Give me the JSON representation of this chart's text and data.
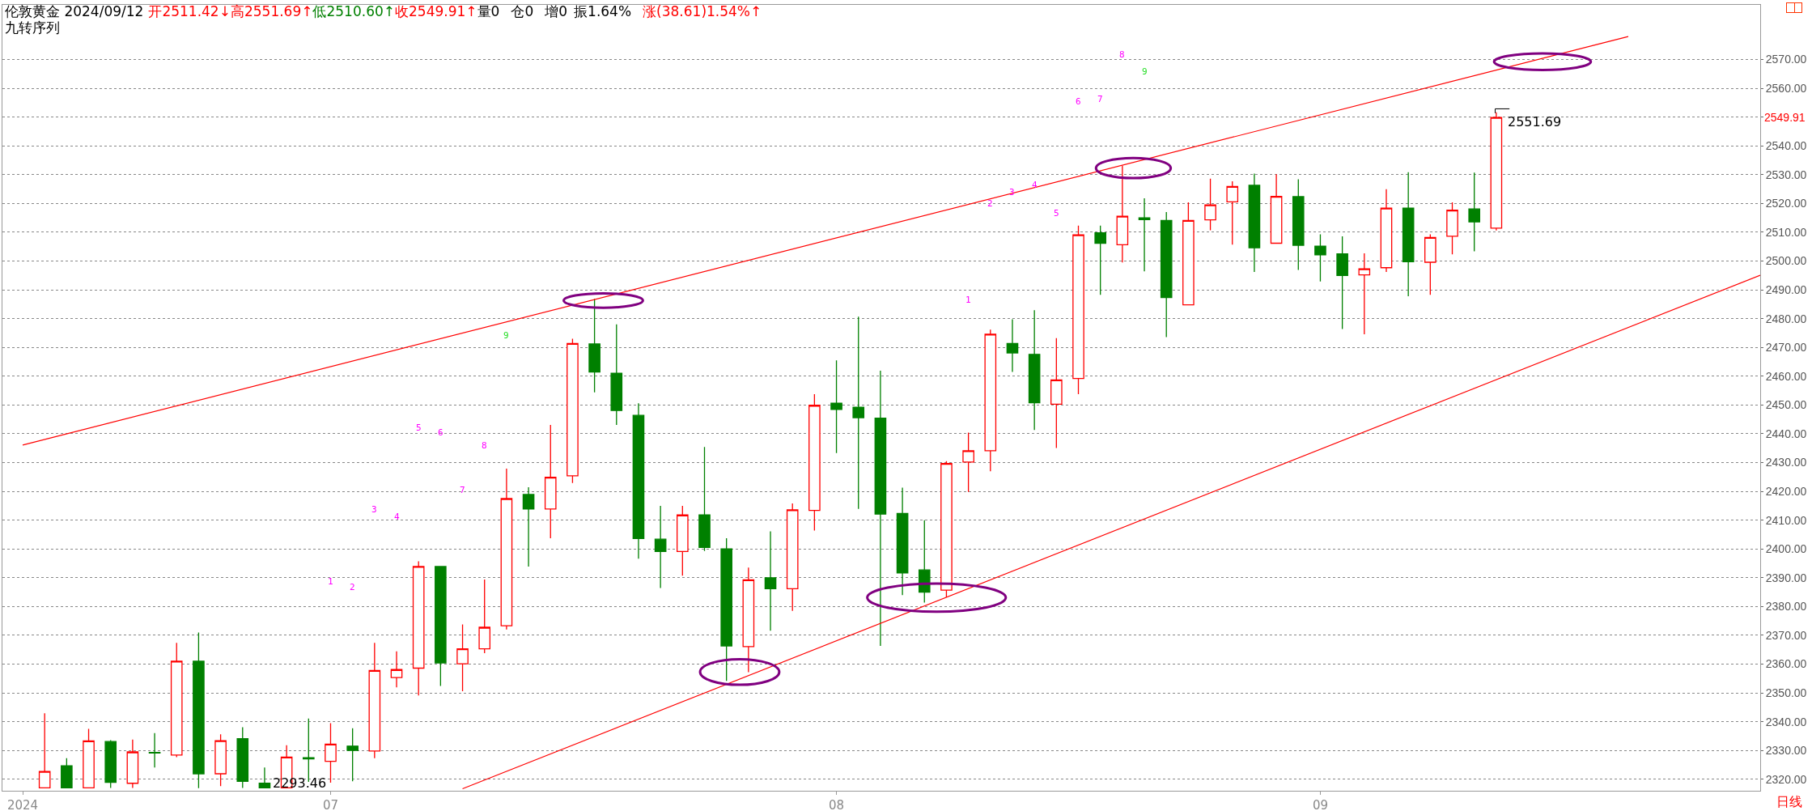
{
  "chart_data": {
    "type": "candlestick",
    "title": "伦敦黄金 2024/09/12",
    "subtitle": "九转序列",
    "categories": [
      "2024",
      null,
      null,
      null,
      null,
      null,
      null,
      null,
      null,
      null,
      null,
      null,
      null,
      null,
      "07",
      null,
      null,
      null,
      null,
      null,
      null,
      null,
      null,
      null,
      null,
      null,
      null,
      null,
      null,
      null,
      null,
      null,
      null,
      null,
      null,
      null,
      null,
      "08",
      null,
      null,
      null,
      null,
      null,
      null,
      null,
      null,
      null,
      null,
      null,
      null,
      null,
      null,
      null,
      null,
      null,
      null,
      null,
      null,
      null,
      "09",
      null,
      null,
      null,
      null,
      null,
      null,
      null,
      null,
      null,
      null,
      null,
      null,
      null,
      null,
      null,
      null,
      null,
      null,
      null,
      null
    ],
    "ohlc": [
      null,
      [
        2317,
        2342.9,
        2317,
        2322.7
      ],
      [
        2324.7,
        2327.3,
        2317,
        2317
      ],
      [
        2317,
        2337.5,
        2317,
        2333.3
      ],
      [
        2333.1,
        2333.6,
        2317,
        2318.9
      ],
      [
        2318.6,
        2333.8,
        2317,
        2329.5
      ],
      [
        2329.3,
        2336,
        2324.1,
        2329.1
      ],
      [
        2328.4,
        2367.4,
        2327.7,
        2361
      ],
      [
        2361,
        2371,
        2316.9,
        2321.9
      ],
      [
        2321.9,
        2335.6,
        2317.6,
        2333.4
      ],
      [
        2334.1,
        2338.1,
        2317,
        2319.3
      ],
      [
        2318.6,
        2324.1,
        2317,
        2317
      ],
      [
        2317,
        2331.8,
        2317,
        2327.7
      ],
      [
        2327.5,
        2341.1,
        2319.1,
        2327.1
      ],
      [
        2326.2,
        2339.5,
        2318.8,
        2332.2
      ],
      [
        2331.5,
        2337.7,
        2319.3,
        2330
      ],
      [
        2329.8,
        2367.4,
        2327.3,
        2357.8
      ],
      [
        2355.3,
        2364.4,
        2351.9,
        2358.1
      ],
      [
        2358.6,
        2395.7,
        2349.1,
        2393.9
      ],
      [
        2393.9,
        2393.9,
        2352.4,
        2360.4
      ],
      [
        2360.1,
        2373.8,
        2350.6,
        2365.3
      ],
      [
        2365.3,
        2389.4,
        2363.8,
        2372.8
      ],
      [
        2373.3,
        2427.9,
        2372,
        2417.5
      ],
      [
        2418.9,
        2421.4,
        2393.9,
        2413.9
      ],
      [
        2413.9,
        2443.1,
        2403.7,
        2424.9
      ],
      [
        2425.4,
        2473,
        2422.9,
        2471.4
      ],
      [
        2471.2,
        2486.9,
        2454.4,
        2461.5
      ],
      [
        2461,
        2478,
        2443.1,
        2448.1
      ],
      [
        2446.4,
        2450.6,
        2396.6,
        2403.6
      ],
      [
        2403.4,
        2415,
        2386.4,
        2399.1
      ],
      [
        2399.1,
        2415,
        2390.7,
        2411.8
      ],
      [
        2411.8,
        2435.4,
        2399.3,
        2400.5
      ],
      [
        2400,
        2403.7,
        2354.2,
        2366.3
      ],
      [
        2366.1,
        2393.5,
        2357.2,
        2389.3
      ],
      [
        2390,
        2406.1,
        2371.6,
        2386.2
      ],
      [
        2386.2,
        2415.8,
        2378.5,
        2413.6
      ],
      [
        2413.4,
        2453.8,
        2406.4,
        2449.9
      ],
      [
        2450.6,
        2465.5,
        2433.3,
        2448.5
      ],
      [
        2449.2,
        2480.7,
        2413.9,
        2445.6
      ],
      [
        2445.4,
        2461.9,
        2366.3,
        2412.1
      ],
      [
        2412.3,
        2421.3,
        2384,
        2391.7
      ],
      [
        2392.7,
        2410,
        2381.4,
        2385
      ],
      [
        2385.7,
        2430.5,
        2383.2,
        2429.7
      ],
      [
        2430.2,
        2440.4,
        2419.8,
        2434.1
      ],
      [
        2434.1,
        2476.2,
        2427,
        2474.6
      ],
      [
        2471.4,
        2479.8,
        2461.5,
        2468.1
      ],
      [
        2467.6,
        2482.9,
        2441.3,
        2450.8
      ],
      [
        2450.3,
        2473.2,
        2435.1,
        2458.7
      ],
      [
        2459.2,
        2512.3,
        2453.8,
        2509.1
      ],
      [
        2509.8,
        2512.3,
        2488.3,
        2506.2
      ],
      [
        2505.7,
        2533.1,
        2499.5,
        2515.6
      ],
      [
        2515,
        2521.8,
        2496.4,
        2514.4
      ],
      [
        2514.1,
        2517,
        2473.6,
        2487.3
      ],
      [
        2484.8,
        2520.4,
        2484.8,
        2514.1
      ],
      [
        2514.3,
        2528.6,
        2510.7,
        2519.5
      ],
      [
        2520.6,
        2527.7,
        2505.7,
        2525.9
      ],
      [
        2526.3,
        2530.4,
        2496.2,
        2504.6
      ],
      [
        2506.2,
        2530.2,
        2506.2,
        2522.5
      ],
      [
        2522.4,
        2528.4,
        2496.9,
        2505.5
      ],
      [
        2505.2,
        2509.3,
        2492.9,
        2502.2
      ],
      [
        2502.5,
        2508.6,
        2476.4,
        2495
      ],
      [
        2495.2,
        2502.7,
        2474.6,
        2497.3
      ],
      [
        2497.7,
        2525,
        2496.2,
        2518.4
      ],
      [
        2518.4,
        2530.9,
        2487.8,
        2499.8
      ],
      [
        2499.6,
        2509.3,
        2488.3,
        2508.2
      ],
      [
        2508.6,
        2520.4,
        2502.3,
        2517.7
      ],
      [
        2518.1,
        2530.7,
        2503.4,
        2513.6
      ],
      [
        2511.42,
        2551.69,
        2510.6,
        2549.91
      ],
      null,
      null,
      null,
      null,
      null,
      null,
      null,
      null,
      null,
      null,
      null,
      null
    ],
    "series": [
      {
        "type": "line",
        "color": "#ff0000",
        "values": [
          2436.1,
          null,
          null,
          null,
          null,
          null,
          null,
          null,
          null,
          null,
          null,
          null,
          null,
          null,
          null,
          null,
          null,
          null,
          null,
          null,
          null,
          null,
          null,
          null,
          null,
          null,
          null,
          null,
          null,
          null,
          null,
          null,
          null,
          null,
          null,
          null,
          null,
          null,
          null,
          null,
          null,
          null,
          null,
          null,
          null,
          null,
          null,
          null,
          null,
          null,
          null,
          null,
          null,
          null,
          null,
          null,
          null,
          null,
          null,
          null,
          null,
          null,
          null,
          null,
          null,
          null,
          null,
          null,
          null,
          null,
          null,
          null,
          null,
          2578.0,
          null,
          null,
          null,
          null,
          null,
          null
        ]
      },
      {
        "type": "line",
        "color": "#ff0000",
        "values": [
          null,
          null,
          null,
          null,
          null,
          null,
          null,
          null,
          null,
          null,
          null,
          null,
          null,
          null,
          null,
          null,
          null,
          null,
          null,
          null,
          2316.7,
          null,
          null,
          null,
          null,
          null,
          null,
          null,
          null,
          null,
          null,
          null,
          null,
          null,
          null,
          null,
          null,
          null,
          null,
          null,
          null,
          null,
          null,
          null,
          null,
          null,
          null,
          null,
          null,
          null,
          null,
          null,
          null,
          null,
          null,
          null,
          null,
          null,
          null,
          null,
          null,
          null,
          null,
          null,
          null,
          null,
          null,
          null,
          null,
          null,
          null,
          null,
          null,
          null,
          null,
          null,
          null,
          null,
          null,
          2495.1
        ]
      }
    ],
    "ylim": [
      2316,
      2589
    ],
    "yticks": [
      {
        "value": 2320,
        "label": "2320.00"
      },
      {
        "value": 2330,
        "label": "2330.00"
      },
      {
        "value": 2340,
        "label": "2340.00"
      },
      {
        "value": 2350,
        "label": "2350.00"
      },
      {
        "value": 2360,
        "label": "2360.00"
      },
      {
        "value": 2370,
        "label": "2370.00"
      },
      {
        "value": 2380,
        "label": "2380.00"
      },
      {
        "value": 2390,
        "label": "2390.00"
      },
      {
        "value": 2400,
        "label": "2400.00"
      },
      {
        "value": 2410,
        "label": "2410.00"
      },
      {
        "value": 2420,
        "label": "2420.00"
      },
      {
        "value": 2430,
        "label": "2430.00"
      },
      {
        "value": 2440,
        "label": "2440.00"
      },
      {
        "value": 2450,
        "label": "2450.00"
      },
      {
        "value": 2460,
        "label": "2460.00"
      },
      {
        "value": 2470,
        "label": "2470.00"
      },
      {
        "value": 2480,
        "label": "2480.00"
      },
      {
        "value": 2490,
        "label": "2490.00"
      },
      {
        "value": 2500,
        "label": "2500.00"
      },
      {
        "value": 2510,
        "label": "2510.00"
      },
      {
        "value": 2520,
        "label": "2520.00"
      },
      {
        "value": 2530,
        "label": "2530.00"
      },
      {
        "value": 2540,
        "label": "2540.00"
      },
      {
        "value": 2550,
        "label": null
      },
      {
        "value": 2560,
        "label": "2560.00"
      },
      {
        "value": 2570,
        "label": "2570.00"
      }
    ],
    "grid": "y",
    "annotations": [
      "开2511.42↓",
      "高2551.69↑",
      "低2510.60↑",
      "收2549.91↑",
      "量0",
      "仓0",
      "增0",
      "振1.64%",
      "涨(38.61)1.54%↑",
      "1",
      "2",
      "3",
      "4",
      "5",
      "6",
      "7",
      "8",
      "9",
      "1",
      "2",
      "3",
      "4",
      "5",
      "6",
      "7",
      "8",
      "9",
      "2551.69",
      "2293.46",
      "2549.91",
      "日线"
    ]
  }
}
